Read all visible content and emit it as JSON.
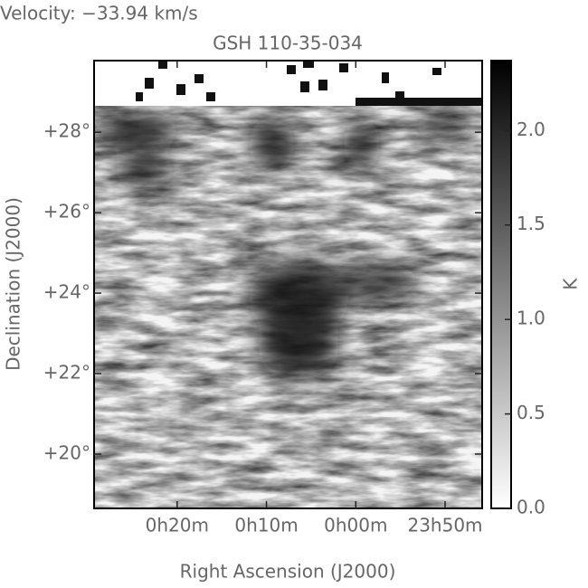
{
  "chart_data": {
    "type": "image",
    "header": "Velocity: −33.94 km/s",
    "title": "GSH 110-35-034",
    "x_label": "Right Ascension (J2000)",
    "y_label": "Declination (J2000)",
    "xlim": [
      29.3,
      -14.15
    ],
    "xticks": [
      {
        "value": 20,
        "label": "0h20m"
      },
      {
        "value": 10,
        "label": "0h10m"
      },
      {
        "value": 0,
        "label": "0h00m"
      },
      {
        "value": -10,
        "label": "23h50m"
      }
    ],
    "ylim": [
      18.65,
      29.78
    ],
    "yticks": [
      {
        "value": 20,
        "label": "+20°"
      },
      {
        "value": 22,
        "label": "+22°"
      },
      {
        "value": 24,
        "label": "+24°"
      },
      {
        "value": 26,
        "label": "+26°"
      },
      {
        "value": 28,
        "label": "+28°"
      }
    ],
    "colorbar": {
      "label": "K",
      "lim": [
        0,
        2.37
      ],
      "ticks": [
        {
          "value": 0,
          "label": "0.0"
        },
        {
          "value": 0.5,
          "label": "0.5"
        },
        {
          "value": 1,
          "label": "1.0"
        },
        {
          "value": 1.5,
          "label": "1.5"
        },
        {
          "value": 2,
          "label": "2.0"
        }
      ]
    }
  }
}
